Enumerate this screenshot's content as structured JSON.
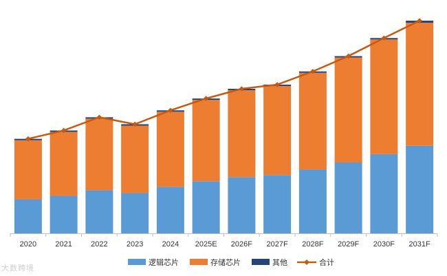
{
  "chart_data": {
    "type": "bar",
    "stacked": true,
    "categories": [
      "2020",
      "2021",
      "2022",
      "2023",
      "2024",
      "2025E",
      "2026F",
      "2027F",
      "2028F",
      "2029F",
      "2030F",
      "2031F"
    ],
    "series": [
      {
        "name": "逻辑芯片",
        "color": "#5b9bd5",
        "values": [
          49,
          54,
          62,
          58,
          67,
          75,
          81,
          84,
          92,
          102,
          114,
          126
        ]
      },
      {
        "name": "存储芯片",
        "color": "#ed7d31",
        "values": [
          85,
          92,
          103,
          97,
          108,
          117,
          125,
          128,
          139,
          151,
          165,
          177
        ]
      },
      {
        "name": "其他",
        "color": "#264478",
        "values": [
          2,
          2,
          2,
          2,
          2,
          2,
          2,
          2,
          2,
          2,
          2,
          3
        ]
      }
    ],
    "line": {
      "name": "合计",
      "color": "#c55a11",
      "values": [
        136,
        148,
        167,
        157,
        177,
        194,
        208,
        214,
        233,
        255,
        281,
        306
      ]
    },
    "ylim": [
      0,
      310
    ],
    "grid": false,
    "legend_position": "bottom",
    "title": "",
    "xlabel": "",
    "ylabel": ""
  },
  "watermark": "大数跨境"
}
